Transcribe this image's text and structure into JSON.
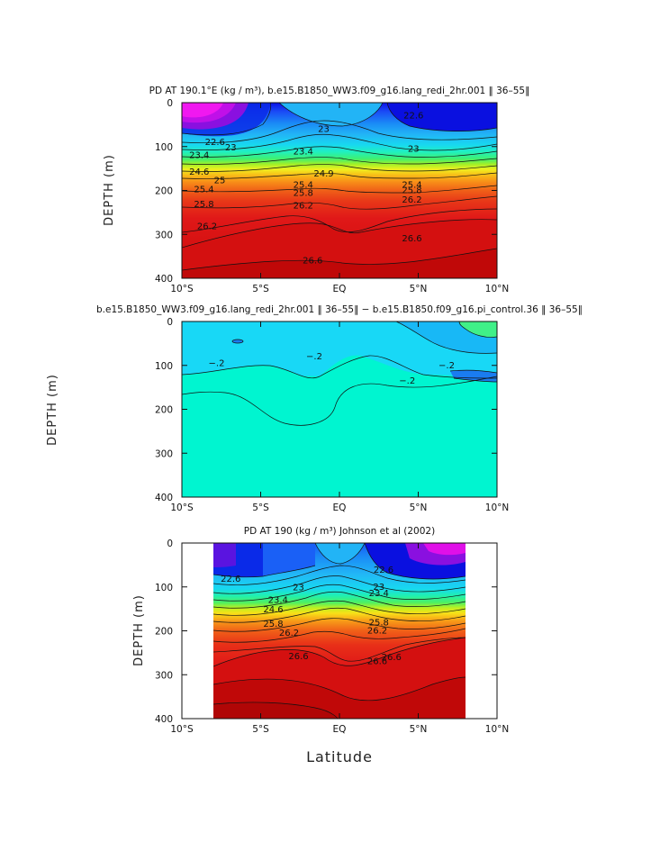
{
  "chart_data": [
    {
      "type": "heatmap",
      "title": "PD AT 190.1°E (kg / m³), b.e15.B1850_WW3.f09_g16.lang_redi_2hr.001 ‖ 36–55‖",
      "xlabel": "",
      "ylabel": "DEPTH (m)",
      "xlim": [
        -10,
        10
      ],
      "ylim": [
        400,
        0
      ],
      "x_ticks": [
        "10°S",
        "5°S",
        "EQ",
        "5°N",
        "10°N"
      ],
      "y_ticks": [
        "0",
        "100",
        "200",
        "300",
        "400"
      ],
      "contour_labels": [
        {
          "text": "22.6",
          "lat": -7.9,
          "depth": 90
        },
        {
          "text": "23",
          "lat": -6.9,
          "depth": 103
        },
        {
          "text": "23.4",
          "lat": -8.9,
          "depth": 120
        },
        {
          "text": "24.6",
          "lat": -8.9,
          "depth": 158
        },
        {
          "text": "25",
          "lat": -7.6,
          "depth": 177
        },
        {
          "text": "25.4",
          "lat": -8.6,
          "depth": 198
        },
        {
          "text": "25.8",
          "lat": -8.6,
          "depth": 232
        },
        {
          "text": "26.2",
          "lat": -8.4,
          "depth": 282
        },
        {
          "text": "23",
          "lat": -1.0,
          "depth": 60
        },
        {
          "text": "23.4",
          "lat": -2.3,
          "depth": 112
        },
        {
          "text": "24.9",
          "lat": -1.0,
          "depth": 162
        },
        {
          "text": "25.4",
          "lat": -2.3,
          "depth": 188
        },
        {
          "text": "25.8",
          "lat": -2.3,
          "depth": 206
        },
        {
          "text": "26.2",
          "lat": -2.3,
          "depth": 235
        },
        {
          "text": "26.6",
          "lat": -1.7,
          "depth": 360
        },
        {
          "text": "22.6",
          "lat": 4.7,
          "depth": 30
        },
        {
          "text": "23",
          "lat": 4.7,
          "depth": 106
        },
        {
          "text": "25.4",
          "lat": 4.6,
          "depth": 188
        },
        {
          "text": "25.8",
          "lat": 4.6,
          "depth": 200
        },
        {
          "text": "26.2",
          "lat": 4.6,
          "depth": 222
        },
        {
          "text": "26.6",
          "lat": 4.6,
          "depth": 310
        }
      ]
    },
    {
      "type": "heatmap",
      "title": "b.e15.B1850_WW3.f09_g16.lang_redi_2hr.001 ‖ 36–55‖ − b.e15.B1850.f09_g16.pi_control.36 ‖ 36–55‖",
      "xlabel": "",
      "ylabel": "DEPTH (m)",
      "xlim": [
        -10,
        10
      ],
      "ylim": [
        400,
        0
      ],
      "x_ticks": [
        "10°S",
        "5°S",
        "EQ",
        "5°N",
        "10°N"
      ],
      "y_ticks": [
        "0",
        "100",
        "200",
        "300",
        "400"
      ],
      "contour_labels": [
        {
          "text": "−.2",
          "lat": -7.8,
          "depth": 95
        },
        {
          "text": "−.2",
          "lat": -1.6,
          "depth": 80
        },
        {
          "text": "−.2",
          "lat": 4.3,
          "depth": 135
        },
        {
          "text": "−.2",
          "lat": 6.8,
          "depth": 100
        }
      ]
    },
    {
      "type": "heatmap",
      "title": "PD AT 190 (kg / m³) Johnson et al (2002)",
      "xlabel": "Latitude",
      "ylabel": "DEPTH (m)",
      "xlim": [
        -10,
        10
      ],
      "ylim": [
        400,
        0
      ],
      "data_extent_lat": [
        -8,
        8
      ],
      "x_ticks": [
        "10°S",
        "5°S",
        "EQ",
        "5°N",
        "10°N"
      ],
      "y_ticks": [
        "0",
        "100",
        "200",
        "300",
        "400"
      ],
      "contour_labels": [
        {
          "text": "22.6",
          "lat": -6.9,
          "depth": 82
        },
        {
          "text": "23",
          "lat": -2.6,
          "depth": 102
        },
        {
          "text": "23.4",
          "lat": -3.9,
          "depth": 130
        },
        {
          "text": "24.6",
          "lat": -4.2,
          "depth": 152
        },
        {
          "text": "25.8",
          "lat": -4.2,
          "depth": 185
        },
        {
          "text": "26.2",
          "lat": -3.2,
          "depth": 205
        },
        {
          "text": "26.6",
          "lat": -2.6,
          "depth": 258
        },
        {
          "text": "22.6",
          "lat": 2.8,
          "depth": 62
        },
        {
          "text": "23",
          "lat": 2.5,
          "depth": 100
        },
        {
          "text": "23.4",
          "lat": 2.5,
          "depth": 115
        },
        {
          "text": "25.8",
          "lat": 2.5,
          "depth": 182
        },
        {
          "text": "26.2",
          "lat": 2.4,
          "depth": 200
        },
        {
          "text": "26.6",
          "lat": 2.4,
          "depth": 270
        },
        {
          "text": "26.6",
          "lat": 3.3,
          "depth": 260
        }
      ]
    }
  ]
}
